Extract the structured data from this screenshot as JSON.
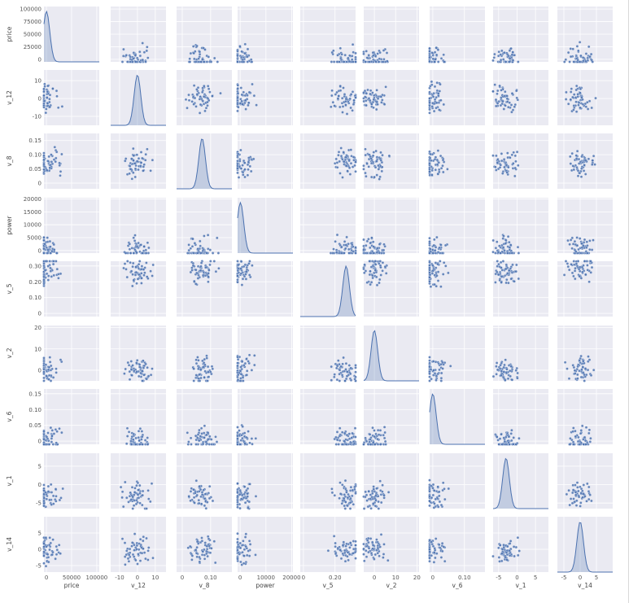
{
  "chart_data": {
    "type": "scatter",
    "kind": "pairplot",
    "variables": [
      "price",
      "v_12",
      "v_8",
      "power",
      "v_5",
      "v_2",
      "v_6",
      "v_1",
      "v_14"
    ],
    "diag_kind": "kde",
    "axes": [
      {
        "name": "price",
        "range": [
          -5000,
          105000
        ],
        "ticks": [
          0,
          50000,
          100000
        ],
        "yticks": [
          0,
          25000,
          50000,
          75000,
          100000
        ],
        "kde_peak": 0.1
      },
      {
        "name": "v_12",
        "range": [
          -15,
          16
        ],
        "ticks": [
          -10,
          0,
          10
        ],
        "yticks": [
          -10,
          0,
          10
        ],
        "kde_peak": 0.0
      },
      {
        "name": "v_8",
        "range": [
          -0.02,
          0.175
        ],
        "ticks": [
          0.0,
          0.1
        ],
        "yticks": [
          0.0,
          0.05,
          0.1,
          0.15
        ],
        "kde_peak": 0.07
      },
      {
        "name": "power",
        "range": [
          -1000,
          20500
        ],
        "ticks": [
          0,
          10000,
          20000
        ],
        "yticks": [
          0,
          5000,
          10000,
          15000,
          20000
        ],
        "kde_peak": 100
      },
      {
        "name": "v_5",
        "range": [
          -0.02,
          0.33
        ],
        "ticks": [
          0.0,
          0.2
        ],
        "yticks": [
          0.0,
          0.1,
          0.2,
          0.3
        ],
        "kde_peak": 0.27
      },
      {
        "name": "v_2",
        "range": [
          -5,
          21
        ],
        "ticks": [
          0,
          10,
          20
        ],
        "yticks": [
          0,
          10,
          20
        ],
        "kde_peak": 0.0
      },
      {
        "name": "v_6",
        "range": [
          -0.01,
          0.165
        ],
        "ticks": [
          0.0,
          0.1
        ],
        "yticks": [
          0.0,
          0.05,
          0.1,
          0.15
        ],
        "kde_peak": 0.0
      },
      {
        "name": "v_1",
        "range": [
          -6.5,
          8.5
        ],
        "ticks": [
          -5,
          0,
          5
        ],
        "yticks": [
          -5,
          0,
          5
        ],
        "kde_peak": -3
      },
      {
        "name": "v_14",
        "range": [
          -7,
          10
        ],
        "ticks": [
          -5,
          0,
          5
        ],
        "yticks": [
          -5,
          0,
          5
        ],
        "kde_peak": 0.0
      }
    ],
    "grid": true,
    "marker_color": "#4c72b0",
    "background_color": "#eaeaf2"
  }
}
